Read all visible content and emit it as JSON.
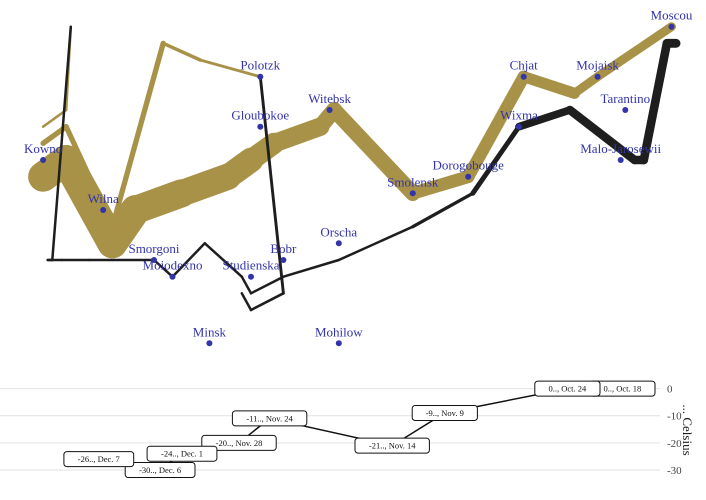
{
  "chart_data": [
    {
      "type": "line",
      "subtype": "flow-map",
      "colors": {
        "advance": "#a89248",
        "retreat": "#1e1e1e",
        "city": "#3333aa"
      },
      "extent": {
        "lon": [
          23.5,
          38.0
        ],
        "lat": [
          53.8,
          55.9
        ]
      },
      "cities": [
        {
          "name": "Kowno",
          "lon": 24.0,
          "lat": 55.0
        },
        {
          "name": "Wilna",
          "lon": 25.3,
          "lat": 54.7
        },
        {
          "name": "Smorgoni",
          "lon": 26.4,
          "lat": 54.4
        },
        {
          "name": "Moiodexno",
          "lon": 26.8,
          "lat": 54.3
        },
        {
          "name": "Gloubokoe",
          "lon": 28.7,
          "lat": 55.2
        },
        {
          "name": "Minsk",
          "lon": 27.6,
          "lat": 53.9
        },
        {
          "name": "Studienska",
          "lon": 28.5,
          "lat": 54.3
        },
        {
          "name": "Polotzk",
          "lon": 28.7,
          "lat": 55.5
        },
        {
          "name": "Bobr",
          "lon": 29.2,
          "lat": 54.4
        },
        {
          "name": "Witebsk",
          "lon": 30.2,
          "lat": 55.3
        },
        {
          "name": "Orscha",
          "lon": 30.4,
          "lat": 54.5
        },
        {
          "name": "Mohilow",
          "lon": 30.4,
          "lat": 53.9
        },
        {
          "name": "Smolensk",
          "lon": 32.0,
          "lat": 54.8
        },
        {
          "name": "Dorogobouge",
          "lon": 33.2,
          "lat": 54.9
        },
        {
          "name": "Wixma",
          "lon": 34.3,
          "lat": 55.2
        },
        {
          "name": "Chjat",
          "lon": 34.4,
          "lat": 55.5
        },
        {
          "name": "Mojaisk",
          "lon": 36.0,
          "lat": 55.5
        },
        {
          "name": "Moscou",
          "lon": 37.6,
          "lat": 55.8
        },
        {
          "name": "Tarantino",
          "lon": 36.6,
          "lat": 55.3
        },
        {
          "name": "Malo-Jarosewii",
          "lon": 36.5,
          "lat": 55.0
        }
      ],
      "troops": [
        {
          "direction": "A",
          "group": 1,
          "path": [
            {
              "lon": 24.0,
              "lat": 54.9,
              "survivors": 340000
            },
            {
              "lon": 24.5,
              "lat": 55.0,
              "survivors": 340000
            },
            {
              "lon": 25.5,
              "lat": 54.5,
              "survivors": 340000
            },
            {
              "lon": 26.0,
              "lat": 54.7,
              "survivors": 320000
            },
            {
              "lon": 27.0,
              "lat": 54.8,
              "survivors": 300000
            },
            {
              "lon": 28.0,
              "lat": 54.9,
              "survivors": 280000
            },
            {
              "lon": 28.5,
              "lat": 55.0,
              "survivors": 240000
            },
            {
              "lon": 29.0,
              "lat": 55.1,
              "survivors": 210000
            },
            {
              "lon": 30.0,
              "lat": 55.2,
              "survivors": 180000
            },
            {
              "lon": 30.3,
              "lat": 55.3,
              "survivors": 175000
            },
            {
              "lon": 32.0,
              "lat": 54.8,
              "survivors": 145000
            },
            {
              "lon": 33.2,
              "lat": 54.9,
              "survivors": 140000
            },
            {
              "lon": 34.4,
              "lat": 55.5,
              "survivors": 127100
            },
            {
              "lon": 35.5,
              "lat": 55.4,
              "survivors": 100000
            },
            {
              "lon": 36.0,
              "lat": 55.5,
              "survivors": 100000
            },
            {
              "lon": 37.6,
              "lat": 55.8,
              "survivors": 100000
            }
          ]
        },
        {
          "direction": "R",
          "group": 1,
          "path": [
            {
              "lon": 37.7,
              "lat": 55.7,
              "survivors": 100000
            },
            {
              "lon": 37.5,
              "lat": 55.7,
              "survivors": 98000
            },
            {
              "lon": 37.0,
              "lat": 55.0,
              "survivors": 97000
            },
            {
              "lon": 36.8,
              "lat": 55.0,
              "survivors": 96000
            },
            {
              "lon": 35.4,
              "lat": 55.3,
              "survivors": 87000
            },
            {
              "lon": 34.3,
              "lat": 55.2,
              "survivors": 55000
            },
            {
              "lon": 33.3,
              "lat": 54.8,
              "survivors": 37000
            },
            {
              "lon": 32.0,
              "lat": 54.6,
              "survivors": 24000
            },
            {
              "lon": 30.4,
              "lat": 54.4,
              "survivors": 20000
            },
            {
              "lon": 29.2,
              "lat": 54.3,
              "survivors": 20000
            },
            {
              "lon": 28.5,
              "lat": 54.2,
              "survivors": 20000
            },
            {
              "lon": 28.3,
              "lat": 54.3,
              "survivors": 20000
            },
            {
              "lon": 27.5,
              "lat": 54.5,
              "survivors": 20000
            },
            {
              "lon": 26.8,
              "lat": 54.3,
              "survivors": 12000
            },
            {
              "lon": 26.4,
              "lat": 54.4,
              "survivors": 14000
            },
            {
              "lon": 25.0,
              "lat": 54.4,
              "survivors": 8000
            },
            {
              "lon": 24.4,
              "lat": 54.4,
              "survivors": 4000
            },
            {
              "lon": 24.2,
              "lat": 54.4,
              "survivors": 4000
            },
            {
              "lon": 24.1,
              "lat": 54.4,
              "survivors": 4000
            }
          ]
        },
        {
          "direction": "A",
          "group": 2,
          "path": [
            {
              "lon": 24.0,
              "lat": 55.1,
              "survivors": 60000
            },
            {
              "lon": 24.5,
              "lat": 55.2,
              "survivors": 60000
            },
            {
              "lon": 25.5,
              "lat": 54.6,
              "survivors": 60000
            },
            {
              "lon": 26.6,
              "lat": 55.7,
              "survivors": 40000
            },
            {
              "lon": 27.4,
              "lat": 55.6,
              "survivors": 33000
            },
            {
              "lon": 28.7,
              "lat": 55.5,
              "survivors": 33000
            }
          ]
        },
        {
          "direction": "R",
          "group": 2,
          "path": [
            {
              "lon": 28.7,
              "lat": 55.5,
              "survivors": 33000
            },
            {
              "lon": 29.2,
              "lat": 54.2,
              "survivors": 30000
            },
            {
              "lon": 28.5,
              "lat": 54.1,
              "survivors": 28000
            },
            {
              "lon": 28.3,
              "lat": 54.2,
              "survivors": 28000
            }
          ]
        },
        {
          "direction": "A",
          "group": 3,
          "path": [
            {
              "lon": 24.0,
              "lat": 55.2,
              "survivors": 22000
            },
            {
              "lon": 24.5,
              "lat": 55.3,
              "survivors": 22000
            },
            {
              "lon": 24.6,
              "lat": 55.8,
              "survivors": 6000
            }
          ]
        },
        {
          "direction": "R",
          "group": 3,
          "path": [
            {
              "lon": 24.6,
              "lat": 55.8,
              "survivors": 6000
            },
            {
              "lon": 24.2,
              "lat": 54.4,
              "survivors": 6000
            },
            {
              "lon": 24.1,
              "lat": 54.4,
              "survivors": 6000
            }
          ]
        }
      ]
    },
    {
      "type": "line",
      "subtype": "temperature",
      "ylabel": "... Celsius",
      "ylim": [
        -30,
        5
      ],
      "yticks": [
        0,
        -10,
        -20,
        -30
      ],
      "grid": true,
      "x_extent_lon": [
        23.5,
        38.0
      ],
      "points": [
        {
          "lon": 37.6,
          "temp": 0,
          "label": "0.., Oct. 18"
        },
        {
          "lon": 36.0,
          "temp": 0,
          "label": "0.., Oct. 24"
        },
        {
          "lon": 33.2,
          "temp": -9,
          "label": "-9.., Nov. 9"
        },
        {
          "lon": 32.0,
          "temp": -21,
          "label": "-21.., Nov. 14"
        },
        {
          "lon": 29.2,
          "temp": -11,
          "label": "-11.., Nov. 24"
        },
        {
          "lon": 28.5,
          "temp": -20,
          "label": "-20.., Nov. 28"
        },
        {
          "lon": 27.2,
          "temp": -24,
          "label": "-24.., Dec. 1"
        },
        {
          "lon": 26.7,
          "temp": -30,
          "label": "-30.., Dec. 6"
        },
        {
          "lon": 25.3,
          "temp": -26,
          "label": "-26.., Dec. 7"
        }
      ]
    }
  ]
}
